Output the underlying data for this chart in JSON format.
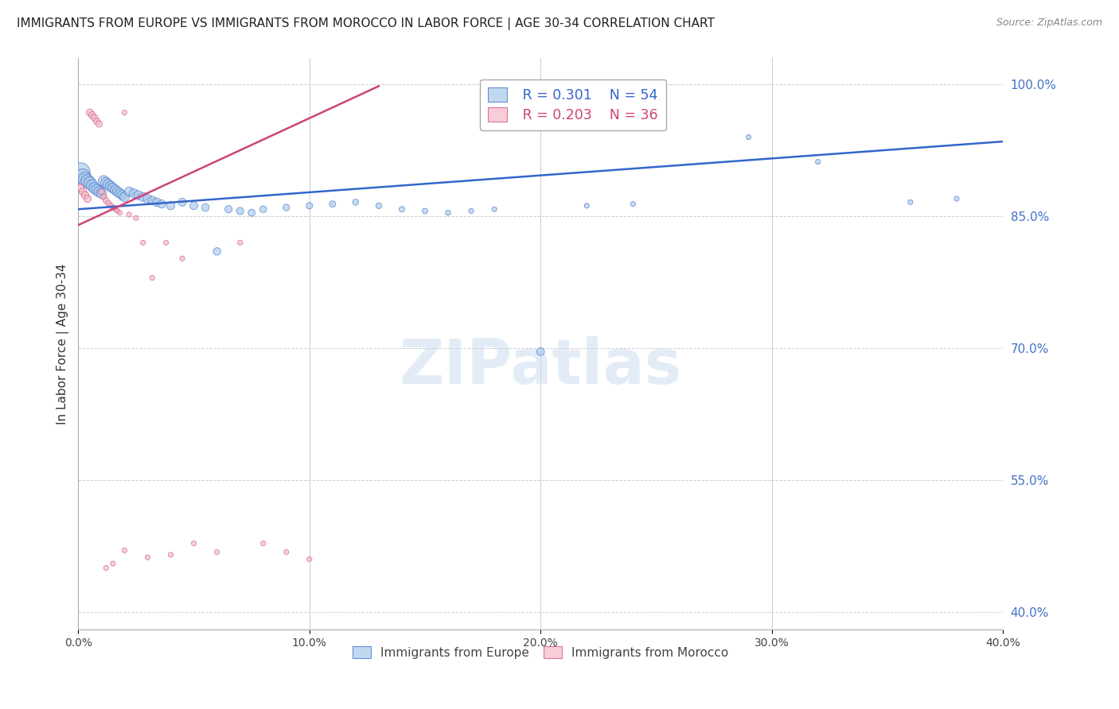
{
  "title": "IMMIGRANTS FROM EUROPE VS IMMIGRANTS FROM MOROCCO IN LABOR FORCE | AGE 30-34 CORRELATION CHART",
  "source": "Source: ZipAtlas.com",
  "ylabel_left": "In Labor Force | Age 30-34",
  "xlim": [
    0.0,
    0.4
  ],
  "ylim": [
    0.38,
    1.03
  ],
  "x_tick_vals": [
    0.0,
    0.1,
    0.2,
    0.3,
    0.4
  ],
  "x_tick_labels": [
    "0.0%",
    "10.0%",
    "20.0%",
    "30.0%",
    "40.0%"
  ],
  "y_tick_vals": [
    0.4,
    0.55,
    0.7,
    0.85,
    1.0
  ],
  "y_tick_labels": [
    "40.0%",
    "55.0%",
    "70.0%",
    "85.0%",
    "100.0%"
  ],
  "legend_r_blue": "R = 0.301",
  "legend_n_blue": "N = 54",
  "legend_r_pink": "R = 0.203",
  "legend_n_pink": "N = 36",
  "watermark": "ZIPatlas",
  "blue_color": "#a8c8e8",
  "pink_color": "#f4b8c8",
  "trend_blue": "#3366cc",
  "trend_pink": "#cc4477",
  "blue_scatter": {
    "x": [
      0.001,
      0.002,
      0.003,
      0.004,
      0.005,
      0.006,
      0.007,
      0.008,
      0.009,
      0.01,
      0.011,
      0.012,
      0.013,
      0.014,
      0.015,
      0.016,
      0.017,
      0.018,
      0.019,
      0.02,
      0.022,
      0.024,
      0.026,
      0.028,
      0.03,
      0.032,
      0.034,
      0.036,
      0.04,
      0.045,
      0.05,
      0.055,
      0.06,
      0.065,
      0.07,
      0.075,
      0.08,
      0.09,
      0.1,
      0.11,
      0.12,
      0.13,
      0.14,
      0.15,
      0.16,
      0.17,
      0.18,
      0.2,
      0.22,
      0.24,
      0.29,
      0.32,
      0.36,
      0.38
    ],
    "y": [
      0.9,
      0.895,
      0.892,
      0.89,
      0.888,
      0.885,
      0.882,
      0.88,
      0.878,
      0.876,
      0.89,
      0.888,
      0.886,
      0.884,
      0.882,
      0.88,
      0.878,
      0.876,
      0.874,
      0.872,
      0.878,
      0.876,
      0.874,
      0.872,
      0.87,
      0.868,
      0.866,
      0.864,
      0.862,
      0.866,
      0.862,
      0.86,
      0.81,
      0.858,
      0.856,
      0.854,
      0.858,
      0.86,
      0.862,
      0.864,
      0.866,
      0.862,
      0.858,
      0.856,
      0.854,
      0.856,
      0.858,
      0.696,
      0.862,
      0.864,
      0.94,
      0.912,
      0.866,
      0.87
    ],
    "sizes": [
      300,
      200,
      160,
      140,
      120,
      110,
      100,
      95,
      90,
      85,
      100,
      95,
      90,
      85,
      82,
      80,
      78,
      76,
      74,
      72,
      70,
      68,
      66,
      64,
      62,
      60,
      58,
      56,
      54,
      52,
      50,
      48,
      46,
      44,
      42,
      40,
      38,
      36,
      34,
      32,
      30,
      28,
      26,
      24,
      22,
      20,
      20,
      50,
      20,
      20,
      20,
      20,
      20,
      20
    ]
  },
  "pink_scatter": {
    "x": [
      0.001,
      0.002,
      0.003,
      0.004,
      0.005,
      0.006,
      0.007,
      0.008,
      0.009,
      0.01,
      0.011,
      0.012,
      0.013,
      0.014,
      0.015,
      0.016,
      0.017,
      0.018,
      0.02,
      0.022,
      0.025,
      0.028,
      0.032,
      0.038,
      0.045,
      0.05,
      0.06,
      0.07,
      0.08,
      0.09,
      0.1,
      0.02,
      0.03,
      0.04,
      0.015,
      0.012
    ],
    "y": [
      0.882,
      0.878,
      0.874,
      0.87,
      0.968,
      0.965,
      0.962,
      0.958,
      0.955,
      0.878,
      0.872,
      0.868,
      0.865,
      0.862,
      0.86,
      0.858,
      0.856,
      0.854,
      0.968,
      0.852,
      0.848,
      0.82,
      0.78,
      0.82,
      0.802,
      0.478,
      0.468,
      0.82,
      0.478,
      0.468,
      0.46,
      0.47,
      0.462,
      0.465,
      0.455,
      0.45
    ],
    "sizes": [
      50,
      48,
      46,
      44,
      42,
      40,
      38,
      36,
      34,
      32,
      30,
      28,
      26,
      24,
      22,
      20,
      20,
      20,
      20,
      20,
      20,
      20,
      20,
      20,
      20,
      20,
      20,
      20,
      20,
      20,
      20,
      20,
      20,
      20,
      20,
      20
    ]
  },
  "blue_trend_x": [
    0.0,
    0.4
  ],
  "blue_trend_y": [
    0.858,
    0.935
  ],
  "pink_trend_x": [
    0.0,
    0.13
  ],
  "pink_trend_y": [
    0.84,
    0.998
  ]
}
